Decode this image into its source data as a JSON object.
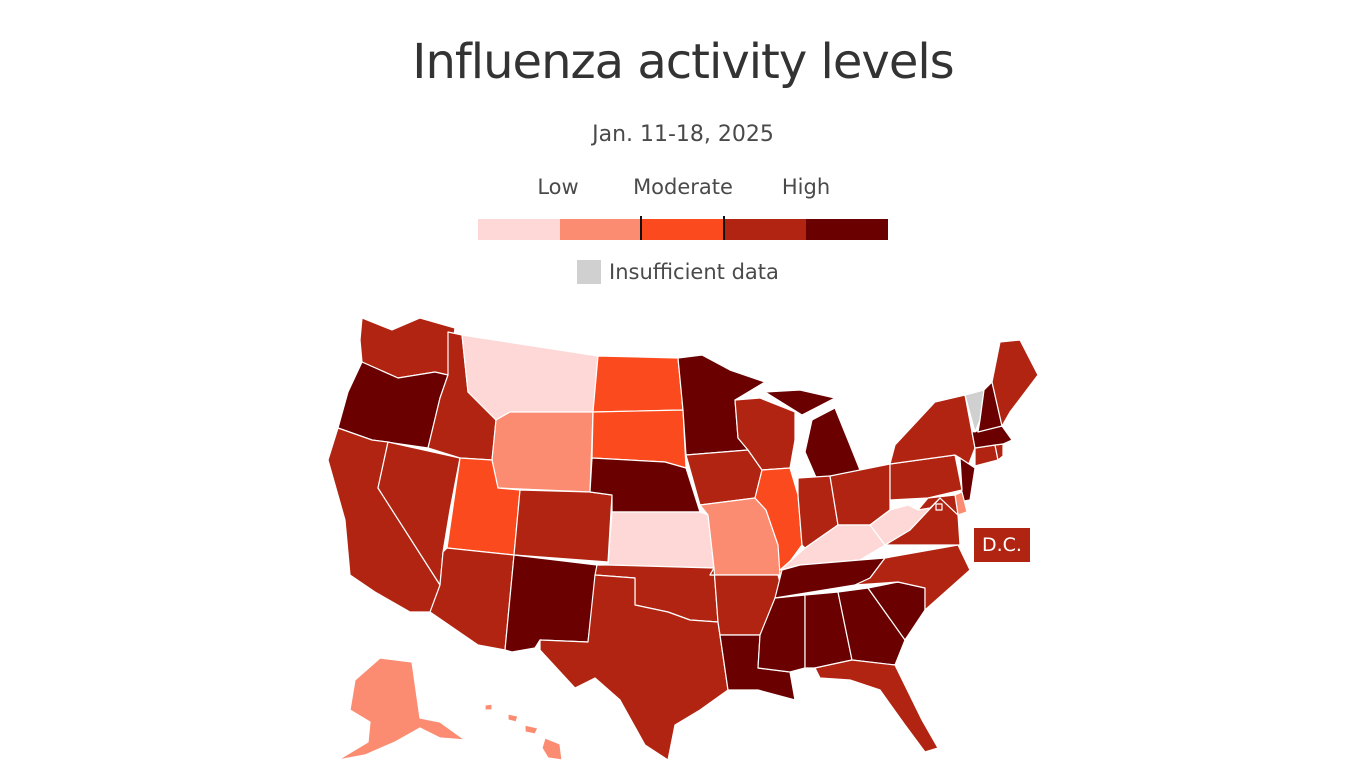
{
  "title": "Influenza activity levels",
  "subtitle": "Jan. 11-18, 2025",
  "legend": {
    "labels": [
      "Low",
      "Moderate",
      "High"
    ],
    "colors": [
      "#fdd8d6",
      "#fb8c72",
      "#fb4a1e",
      "#b12412",
      "#6a0000"
    ],
    "insufficient_label": "Insufficient data",
    "insufficient_color": "#d0d0d0"
  },
  "dc_label": "D.C.",
  "levels": {
    "WA": 4,
    "OR": 5,
    "CA": 4,
    "NV": 4,
    "ID": 4,
    "MT": 1,
    "WY": 2,
    "UT": 3,
    "AZ": 4,
    "CO": 4,
    "NM": 5,
    "ND": 3,
    "SD": 3,
    "NE": 5,
    "KS": 1,
    "OK": 4,
    "TX": 4,
    "MN": 5,
    "IA": 4,
    "MO": 2,
    "AR": 4,
    "LA": 5,
    "WI": 4,
    "IL": 3,
    "MI": 5,
    "IN": 4,
    "OH": 4,
    "KY": 1,
    "TN": 5,
    "MS": 5,
    "AL": 5,
    "GA": 5,
    "FL": 4,
    "SC": 5,
    "NC": 4,
    "VA": 4,
    "WV": 1,
    "PA": 4,
    "NY": 4,
    "ME": 4,
    "VT": 0,
    "NH": 5,
    "MA": 5,
    "CT": 4,
    "RI": 4,
    "NJ": 5,
    "DE": 2,
    "MD": 4,
    "DC": 4,
    "AK": 2,
    "HI": 2
  }
}
